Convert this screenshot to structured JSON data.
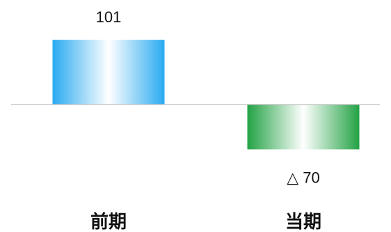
{
  "chart_data": {
    "type": "bar",
    "categories": [
      "前期",
      "当期"
    ],
    "values": [
      101,
      -70
    ],
    "data_labels": [
      "101",
      "△ 70"
    ],
    "ylim": [
      -100,
      150
    ],
    "grid": false,
    "colors": {
      "positive": "#29aaf0",
      "negative": "#22a244",
      "baseline": "#bfbfbf"
    }
  }
}
